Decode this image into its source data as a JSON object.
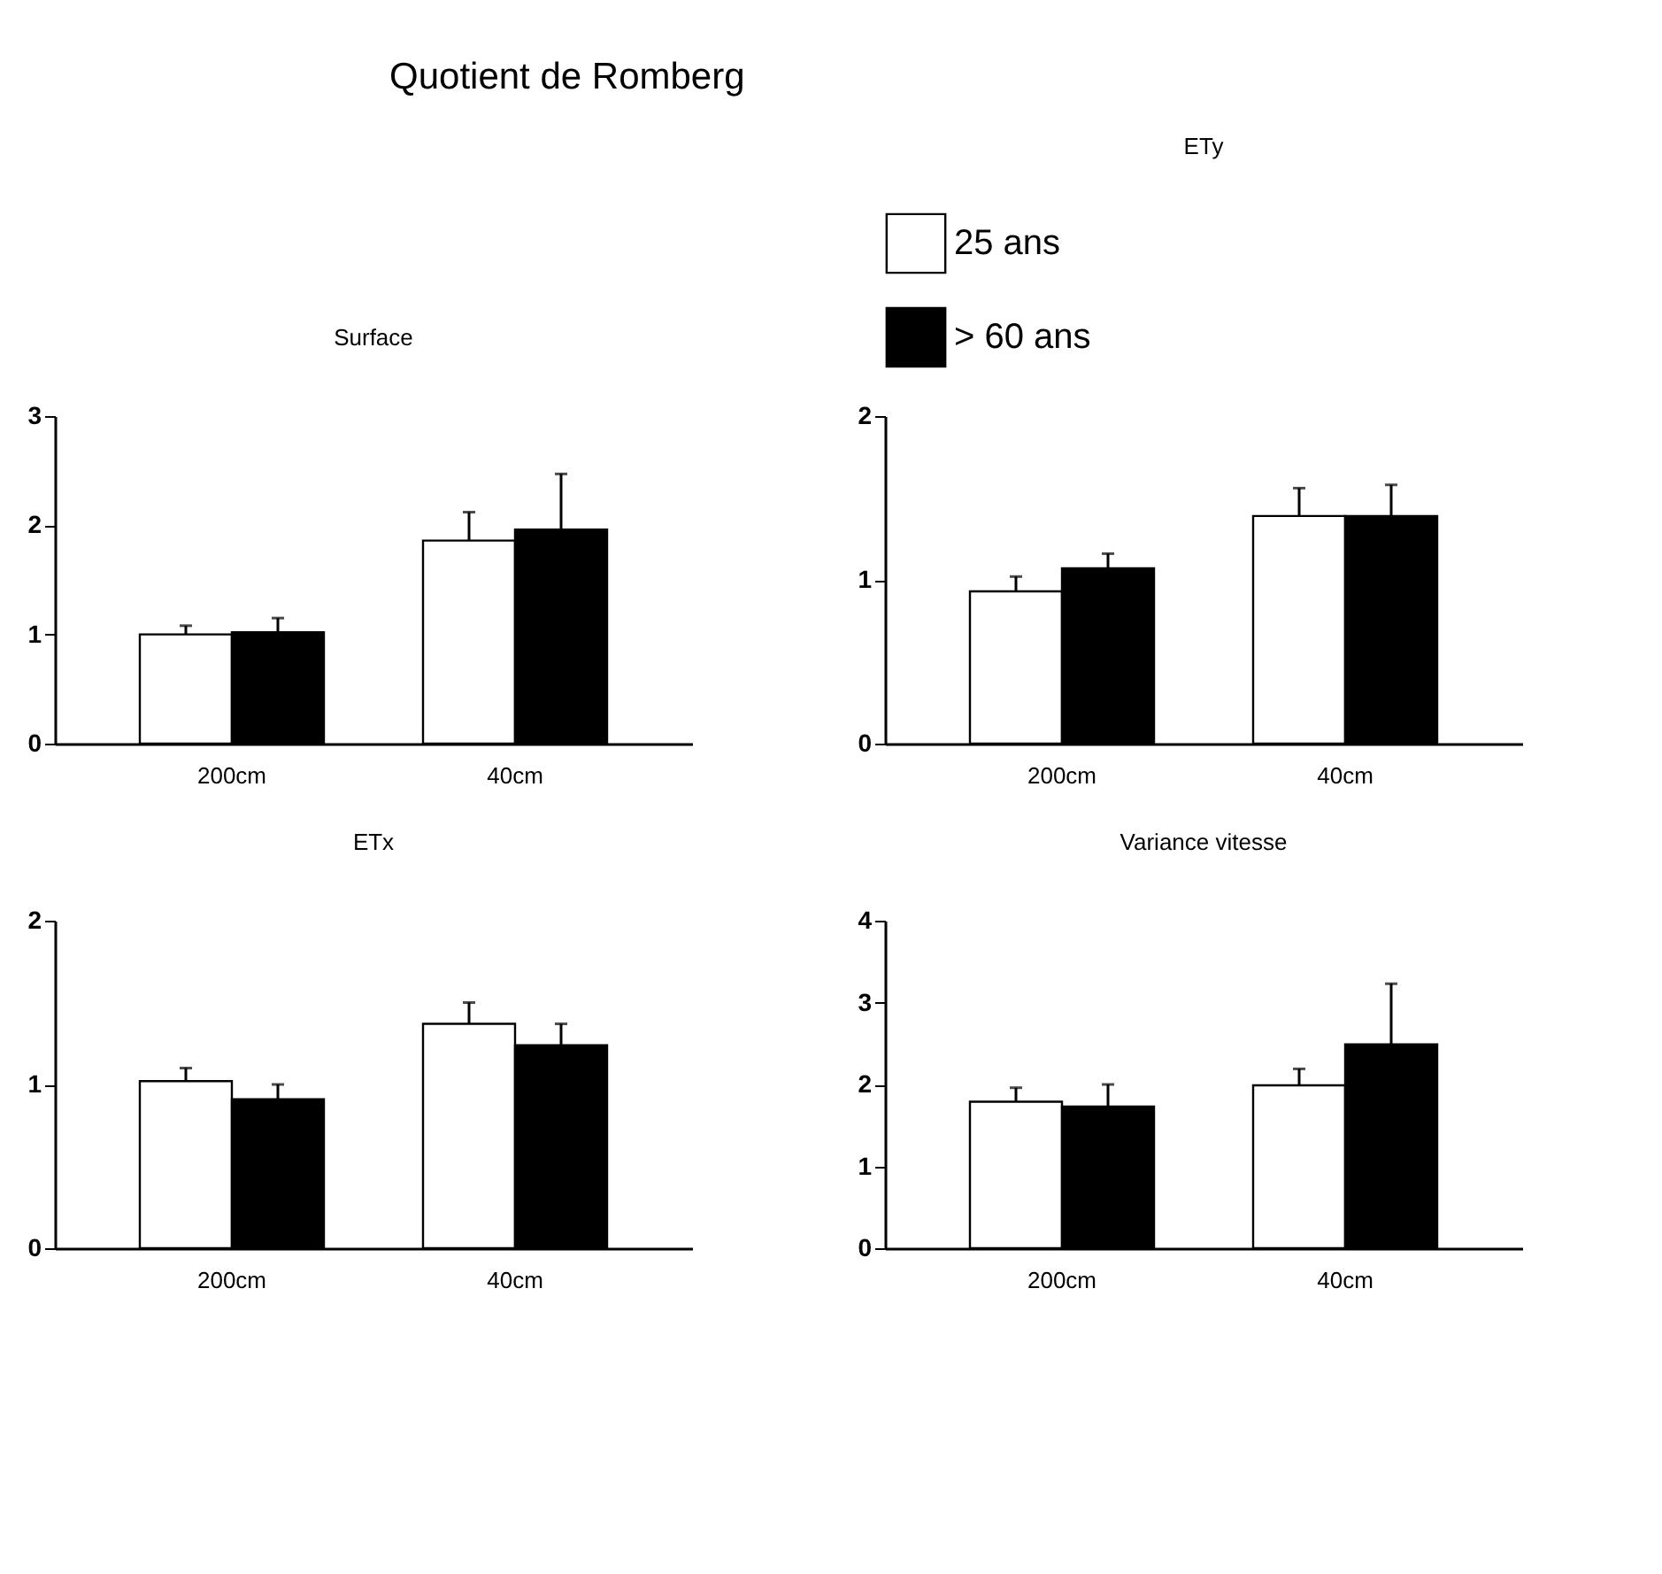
{
  "chart_data": [
    {
      "type": "other",
      "title": "Quotient de Romberg"
    },
    {
      "type": "bar",
      "title": "Surface",
      "categories": [
        "200cm",
        "40cm"
      ],
      "series": [
        {
          "color": "#ffffff",
          "values": [
            1.0,
            1.86
          ],
          "errors": [
            [
              1.0,
              1.08
            ],
            [
              1.86,
              2.12
            ]
          ]
        },
        {
          "color": "#000000",
          "values": [
            1.02,
            1.96
          ],
          "errors": [
            [
              1.02,
              1.15
            ],
            [
              1.96,
              2.47
            ]
          ]
        }
      ],
      "ylim": [
        0,
        3
      ],
      "yticks": [
        0,
        1,
        2,
        3
      ],
      "grid": false,
      "legend": false
    },
    {
      "type": "bar",
      "title": "ETy",
      "categories": [
        "200cm",
        "40cm"
      ],
      "series": [
        {
          "name": "25 ans",
          "color": "#ffffff",
          "values": [
            0.93,
            1.39
          ],
          "errors": [
            [
              0.93,
              1.02
            ],
            [
              1.39,
              1.56
            ]
          ]
        },
        {
          "name": "> 60 ans",
          "color": "#000000",
          "values": [
            1.07,
            1.39
          ],
          "errors": [
            [
              1.07,
              1.16
            ],
            [
              1.39,
              1.58
            ]
          ]
        }
      ],
      "ylim": [
        0,
        2
      ],
      "yticks": [
        0,
        1,
        2
      ],
      "grid": false,
      "legend": "top"
    },
    {
      "type": "bar",
      "title": "ETx",
      "categories": [
        "200cm",
        "40cm"
      ],
      "series": [
        {
          "color": "#ffffff",
          "values": [
            1.02,
            1.37
          ],
          "errors": [
            [
              1.02,
              1.1
            ],
            [
              1.37,
              1.5
            ]
          ]
        },
        {
          "color": "#000000",
          "values": [
            0.91,
            1.24
          ],
          "errors": [
            [
              0.91,
              1.0
            ],
            [
              1.24,
              1.37
            ]
          ]
        }
      ],
      "ylim": [
        0,
        2
      ],
      "yticks": [
        0,
        1,
        2
      ],
      "grid": false,
      "legend": false
    },
    {
      "type": "bar",
      "title": "Variance vitesse",
      "categories": [
        "200cm",
        "40cm"
      ],
      "series": [
        {
          "color": "#ffffff",
          "values": [
            1.79,
            1.99
          ],
          "errors": [
            [
              1.79,
              1.96
            ],
            [
              1.99,
              2.19
            ]
          ]
        },
        {
          "color": "#000000",
          "values": [
            1.73,
            2.49
          ],
          "errors": [
            [
              1.73,
              2.0
            ],
            [
              2.49,
              3.23
            ]
          ]
        }
      ],
      "ylim": [
        0,
        4
      ],
      "yticks": [
        0,
        1,
        2,
        3,
        4
      ],
      "grid": false,
      "legend": false
    }
  ]
}
